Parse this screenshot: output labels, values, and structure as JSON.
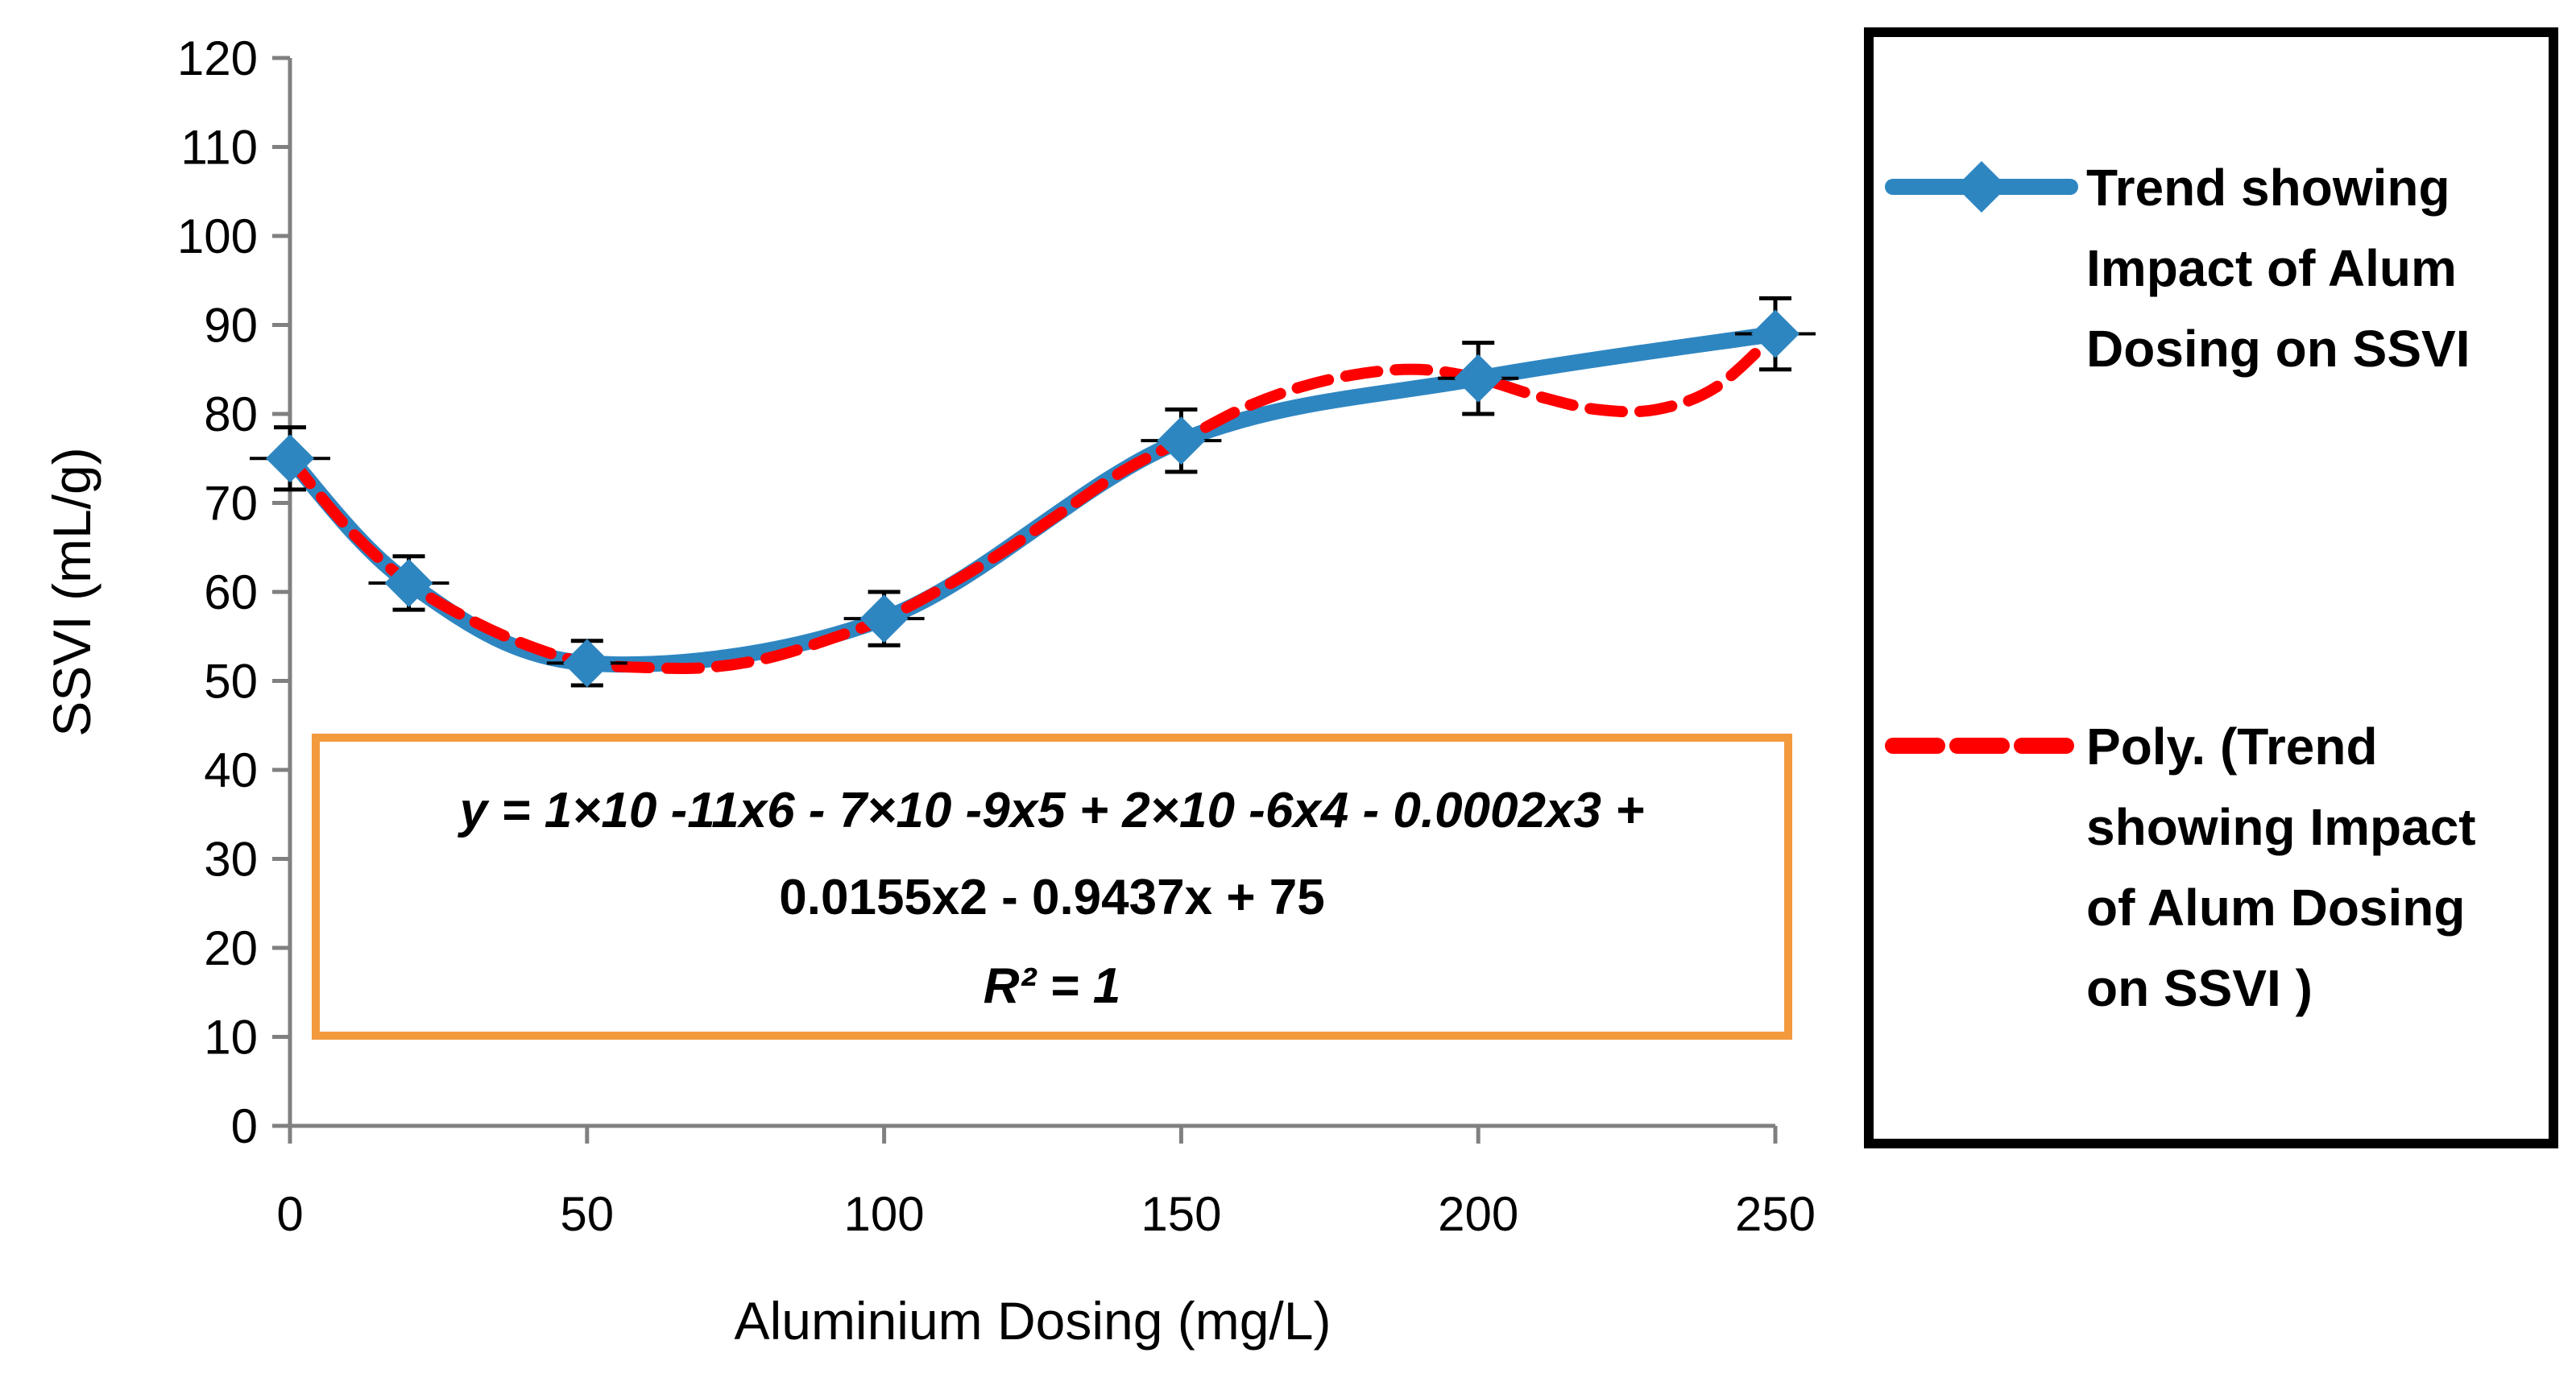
{
  "chart_data": {
    "type": "line",
    "xlabel": "Aluminium Dosing (mg/L)",
    "ylabel": "SSVI (mL/g)",
    "xlim": [
      0,
      250
    ],
    "ylim": [
      0,
      120
    ],
    "x_ticks": [
      0,
      50,
      100,
      150,
      200,
      250
    ],
    "y_ticks": [
      0,
      10,
      20,
      30,
      40,
      50,
      60,
      70,
      80,
      90,
      100,
      110,
      120
    ],
    "grid": false,
    "legend_position": "right",
    "series": [
      {
        "name": "Trend showing Impact of Alum Dosing on SSVI",
        "style": "solid-smoothed-with-diamond-markers",
        "color": "#2E86C1",
        "x": [
          0,
          20,
          50,
          100,
          150,
          200,
          250
        ],
        "values": [
          75,
          61,
          52,
          57,
          77,
          84,
          89
        ],
        "error": [
          3.5,
          3,
          2.5,
          3,
          3.5,
          4,
          4
        ]
      },
      {
        "name": "Poly. (Trend showing Impact of Alum Dosing on SSVI )",
        "style": "dashed",
        "color": "#FF0000",
        "x": [
          0,
          10,
          20,
          30,
          40,
          50,
          60,
          70,
          80,
          90,
          100,
          110,
          120,
          130,
          140,
          150,
          160,
          170,
          180,
          190,
          200,
          210,
          220,
          230,
          240,
          250
        ],
        "values": [
          75,
          67,
          61,
          57,
          54,
          52,
          51.5,
          51.5,
          52.5,
          54.5,
          57,
          60.5,
          64.5,
          69,
          73.5,
          77,
          80.5,
          83,
          84.5,
          85,
          84,
          82,
          80.5,
          80.5,
          83,
          89
        ]
      }
    ],
    "annotation": {
      "equation_line1": "y = 1×10 -11x6 - 7×10 -9x5 + 2×10 -6x4 - 0.0002x3 +",
      "equation_line2": "0.0155x2 - 0.9437x + 75",
      "r_squared": "R² = 1",
      "box_color": "#F39A3D"
    },
    "legend": {
      "series1_lines": [
        "Trend showing",
        "Impact of Alum",
        "Dosing on SSVI"
      ],
      "series2_lines": [
        "Poly. (Trend",
        "showing Impact",
        "of Alum Dosing",
        "on SSVI )"
      ]
    }
  }
}
